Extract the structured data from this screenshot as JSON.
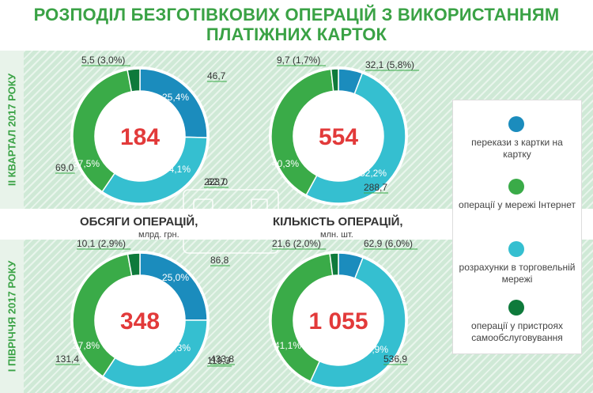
{
  "title_line1": "РОЗПОДІЛ БЕЗГОТІВКОВИХ ОПЕРАЦІЙ З ВИКОРИСТАННЯМ",
  "title_line2": "ПЛАТІЖНИХ КАРТОК",
  "row_labels": [
    "ІІ КВАРТАЛ 2017 РОКУ",
    "І ПІВРІЧЧЯ 2017 РОКУ"
  ],
  "column_headers": [
    {
      "title": "ОБСЯГИ ОПЕРАЦІЙ,",
      "unit": "млрд. грн."
    },
    {
      "title": "КІЛЬКІСТЬ ОПЕРАЦІЙ,",
      "unit": "млн. шт."
    }
  ],
  "legend": [
    {
      "label": "перекази з картки на картку",
      "color": "#1b8cbd"
    },
    {
      "label": "операції у мережі Інтернет",
      "color": "#3aab48"
    },
    {
      "label": "розрахунки в торговельній мережі",
      "color": "#35bfd0"
    },
    {
      "label": "операції у пристроях самообслуговування",
      "color": "#0e7a3b"
    }
  ],
  "chart_data": [
    {
      "type": "pie",
      "title": "ОБСЯГИ ОПЕРАЦІЙ, млрд. грн. — ІІ КВАРТАЛ 2017 РОКУ",
      "center": "184",
      "categories": [
        "перекази з картки на картку",
        "операції у мережі Інтернет",
        "розрахунки в торговельній мережі",
        "операції у пристроях самообслуговування"
      ],
      "values": [
        46.7,
        69.0,
        62.7,
        5.5
      ],
      "value_labels": [
        "46,7",
        "69,0",
        "62,7",
        "5,5 (3,0%)"
      ],
      "percent_labels": [
        "25,4%",
        "37,5%",
        "34,1%",
        ""
      ]
    },
    {
      "type": "pie",
      "title": "КІЛЬКІСТЬ ОПЕРАЦІЙ, млн. шт. — ІІ КВАРТАЛ 2017 РОКУ",
      "center": "554",
      "categories": [
        "перекази з картки на картку",
        "операції у мережі Інтернет",
        "розрахунки в торговельній мережі",
        "операції у пристроях самообслуговування"
      ],
      "values": [
        32.1,
        223.0,
        288.7,
        9.7
      ],
      "value_labels": [
        "32,1 (5,8%)",
        "223,0",
        "288,7",
        "9,7 (1,7%)"
      ],
      "percent_labels": [
        "",
        "40,3%",
        "52,2%",
        ""
      ]
    },
    {
      "type": "pie",
      "title": "ОБСЯГИ ОПЕРАЦІЙ, млрд. грн. — І ПІВРІЧЧЯ 2017 РОКУ",
      "center": "348",
      "categories": [
        "перекази з картки на картку",
        "операції у мережі Інтернет",
        "розрахунки в торговельній мережі",
        "операції у пристроях самообслуговування"
      ],
      "values": [
        86.8,
        131.4,
        119.3,
        10.1
      ],
      "value_labels": [
        "86,8",
        "131,4",
        "119,3",
        "10,1 (2,9%)"
      ],
      "percent_labels": [
        "25,0%",
        "37,8%",
        "34,3%",
        ""
      ]
    },
    {
      "type": "pie",
      "title": "КІЛЬКІСТЬ ОПЕРАЦІЙ, млн. шт. — І ПІВРІЧЧЯ 2017 РОКУ",
      "center": "1 055",
      "categories": [
        "перекази з картки на картку",
        "операції у мережі Інтернет",
        "розрахунки в торговельній мережі",
        "операції у пристроях самообслуговування"
      ],
      "values": [
        62.9,
        433.8,
        536.9,
        21.6
      ],
      "value_labels": [
        "62,9 (6,0%)",
        "433,8",
        "536,9",
        "21,6 (2,0%)"
      ],
      "percent_labels": [
        "",
        "41,1%",
        "50,9%",
        ""
      ]
    }
  ]
}
